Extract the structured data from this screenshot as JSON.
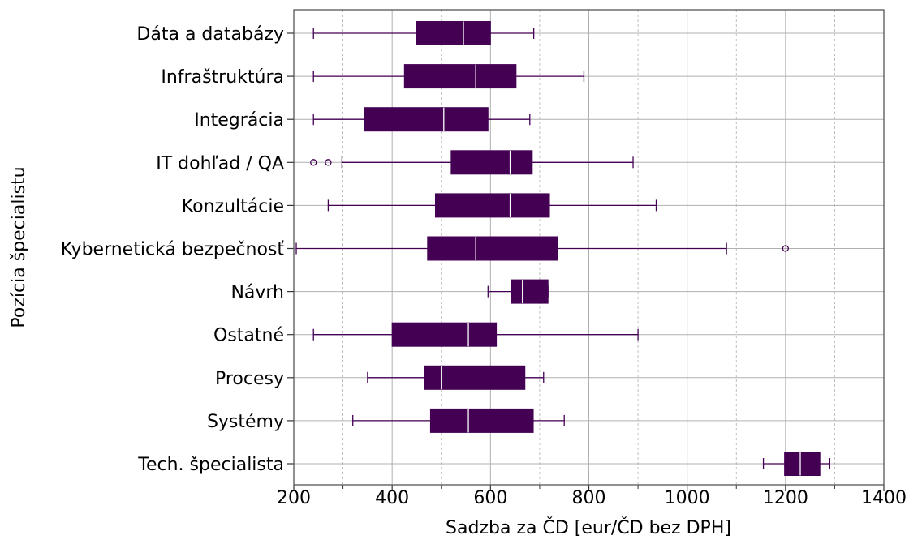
{
  "chart_data": {
    "type": "box",
    "orientation": "horizontal",
    "xlabel": "Sadzba za ČD [eur/ČD bez DPH]",
    "ylabel": "Pozícia špecialistu",
    "xlim": [
      200,
      1400
    ],
    "xticks": [
      200,
      400,
      600,
      800,
      1000,
      1200,
      1400
    ],
    "grid": {
      "major": true,
      "minor_x": true,
      "minor_step": 100
    },
    "colors": {
      "box": "#440154",
      "median": "#ffffff",
      "whisker": "#440154",
      "grid": "#b0b0b0"
    },
    "categories": [
      "Dáta a databázy",
      "Infraštruktúra",
      "Integrácia",
      "IT dohľad / QA",
      "Konzultácie",
      "Kybernetická bezpečnosť",
      "Návrh",
      "Ostatné",
      "Procesy",
      "Systémy",
      "Tech. špecialista"
    ],
    "boxes": [
      {
        "whislo": 240,
        "q1": 450,
        "med": 545,
        "q3": 600,
        "whishi": 688,
        "fliers": []
      },
      {
        "whislo": 240,
        "q1": 425,
        "med": 570,
        "q3": 652,
        "whishi": 790,
        "fliers": []
      },
      {
        "whislo": 240,
        "q1": 343,
        "med": 505,
        "q3": 595,
        "whishi": 680,
        "fliers": []
      },
      {
        "whislo": 298,
        "q1": 520,
        "med": 640,
        "q3": 685,
        "whishi": 890,
        "fliers": [
          240,
          270
        ]
      },
      {
        "whislo": 270,
        "q1": 488,
        "med": 640,
        "q3": 720,
        "whishi": 937,
        "fliers": []
      },
      {
        "whislo": 205,
        "q1": 472,
        "med": 570,
        "q3": 737,
        "whishi": 1080,
        "fliers": [
          1200
        ]
      },
      {
        "whislo": 595,
        "q1": 643,
        "med": 665,
        "q3": 717,
        "whishi": 717,
        "fliers": []
      },
      {
        "whislo": 240,
        "q1": 400,
        "med": 555,
        "q3": 612,
        "whishi": 900,
        "fliers": []
      },
      {
        "whislo": 350,
        "q1": 465,
        "med": 500,
        "q3": 670,
        "whishi": 708,
        "fliers": []
      },
      {
        "whislo": 320,
        "q1": 478,
        "med": 555,
        "q3": 687,
        "whishi": 750,
        "fliers": []
      },
      {
        "whislo": 1155,
        "q1": 1198,
        "med": 1230,
        "q3": 1270,
        "whishi": 1290,
        "fliers": []
      }
    ]
  }
}
